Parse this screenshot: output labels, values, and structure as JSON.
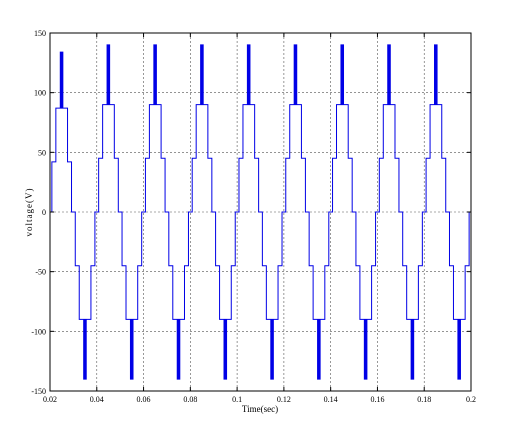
{
  "chart_data": {
    "type": "line",
    "title": "",
    "xlabel": "Time(sec)",
    "ylabel": "voltage(V)",
    "xlim": [
      0.02,
      0.2
    ],
    "ylim": [
      -150,
      150
    ],
    "x_ticks": [
      0.02,
      0.04,
      0.06,
      0.08,
      0.1,
      0.12,
      0.14,
      0.16,
      0.18,
      0.2
    ],
    "x_tick_labels": [
      "0.02",
      "0.04",
      "0.06",
      "0.08",
      "0.1",
      "0.12",
      "0.14",
      "0.16",
      "0.18",
      "0.2"
    ],
    "y_ticks": [
      -150,
      -100,
      -50,
      0,
      50,
      100,
      150
    ],
    "y_tick_labels": [
      "-150",
      "-100",
      "-50",
      "0",
      "50",
      "100",
      "150"
    ],
    "grid": true,
    "grid_style": "dashed",
    "series": [
      {
        "color": "#0000e6",
        "waveform": "multilevel staircase with PWM chopping at top level",
        "fundamental_hz": 50,
        "levels": [
          0,
          45,
          90,
          140
        ],
        "first_cycle_levels": [
          0,
          42,
          87,
          134
        ]
      }
    ]
  }
}
